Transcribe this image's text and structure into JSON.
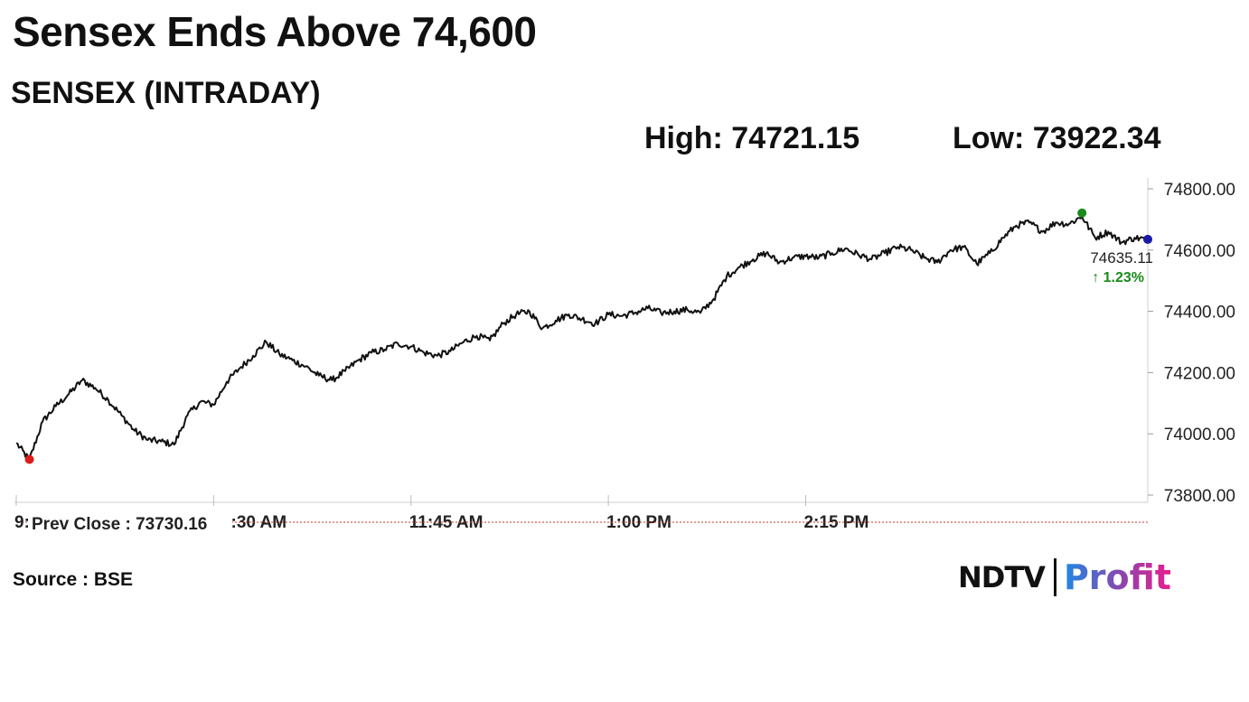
{
  "headline": "Sensex Ends Above 74,600",
  "subheadline": "SENSEX (INTRADAY)",
  "high_text": "High: 74721.15",
  "low_text": "Low: 73922.34",
  "source_text": "Source : BSE",
  "brand": {
    "ndtv": "NDTV",
    "profit": "Profit"
  },
  "chart_data": {
    "type": "line",
    "series": [
      {
        "points": [
          [
            "9:15",
            73970
          ],
          [
            "9:20",
            73915
          ],
          [
            "9:25",
            74040
          ],
          [
            "9:30",
            74090
          ],
          [
            "9:35",
            74130
          ],
          [
            "9:40",
            74175
          ],
          [
            "9:45",
            74150
          ],
          [
            "9:50",
            74110
          ],
          [
            "9:55",
            74060
          ],
          [
            "10:00",
            74010
          ],
          [
            "10:05",
            73980
          ],
          [
            "10:10",
            73975
          ],
          [
            "10:15",
            73965
          ],
          [
            "10:20",
            74060
          ],
          [
            "10:25",
            74105
          ],
          [
            "10:30",
            74095
          ],
          [
            "10:35",
            74170
          ],
          [
            "10:40",
            74215
          ],
          [
            "10:45",
            74255
          ],
          [
            "10:50",
            74300
          ],
          [
            "10:55",
            74260
          ],
          [
            "11:00",
            74240
          ],
          [
            "11:05",
            74220
          ],
          [
            "11:10",
            74190
          ],
          [
            "11:15",
            74175
          ],
          [
            "11:20",
            74205
          ],
          [
            "11:25",
            74240
          ],
          [
            "11:30",
            74265
          ],
          [
            "11:35",
            74275
          ],
          [
            "11:40",
            74295
          ],
          [
            "11:45",
            74285
          ],
          [
            "11:50",
            74265
          ],
          [
            "11:55",
            74255
          ],
          [
            "12:00",
            74270
          ],
          [
            "12:05",
            74300
          ],
          [
            "12:10",
            74320
          ],
          [
            "12:15",
            74305
          ],
          [
            "12:20",
            74360
          ],
          [
            "12:25",
            74390
          ],
          [
            "12:30",
            74400
          ],
          [
            "12:35",
            74345
          ],
          [
            "12:40",
            74370
          ],
          [
            "12:45",
            74390
          ],
          [
            "12:50",
            74375
          ],
          [
            "12:55",
            74360
          ],
          [
            "13:00",
            74390
          ],
          [
            "13:05",
            74385
          ],
          [
            "13:10",
            74395
          ],
          [
            "13:15",
            74410
          ],
          [
            "13:20",
            74395
          ],
          [
            "13:25",
            74400
          ],
          [
            "13:30",
            74405
          ],
          [
            "13:35",
            74395
          ],
          [
            "13:40",
            74440
          ],
          [
            "13:45",
            74515
          ],
          [
            "13:50",
            74545
          ],
          [
            "13:55",
            74570
          ],
          [
            "14:00",
            74590
          ],
          [
            "14:05",
            74560
          ],
          [
            "14:10",
            74575
          ],
          [
            "14:15",
            74580
          ],
          [
            "14:20",
            74575
          ],
          [
            "14:25",
            74590
          ],
          [
            "14:30",
            74605
          ],
          [
            "14:35",
            74585
          ],
          [
            "14:40",
            74570
          ],
          [
            "14:45",
            74590
          ],
          [
            "14:50",
            74610
          ],
          [
            "14:55",
            74600
          ],
          [
            "15:00",
            74575
          ],
          [
            "15:05",
            74560
          ],
          [
            "15:10",
            74600
          ],
          [
            "15:15",
            74610
          ],
          [
            "15:20",
            74555
          ],
          [
            "15:25",
            74590
          ],
          [
            "15:30",
            74640
          ],
          [
            "15:35",
            74680
          ],
          [
            "15:40",
            74690
          ],
          [
            "15:45",
            74660
          ],
          [
            "15:50",
            74690
          ],
          [
            "15:55",
            74685
          ],
          [
            "16:00",
            74710
          ],
          [
            "16:05",
            74640
          ],
          [
            "16:10",
            74660
          ],
          [
            "16:15",
            74625
          ],
          [
            "16:20",
            74640
          ],
          [
            "16:25",
            74635
          ]
        ]
      }
    ],
    "x_ticks": [
      "9:",
      "10:30 AM",
      "11:45 AM",
      "1:00 PM",
      "2:15 PM"
    ],
    "y_ticks": [
      74800,
      74600,
      74400,
      74200,
      74000,
      73800
    ],
    "ylim": [
      73800,
      74800
    ],
    "prev_close": 73730.16,
    "prev_close_label": "Prev Close : 73730.16",
    "last_value_label": "74635.11",
    "change_label": "↑ 1.23%",
    "high_value": 74721.15,
    "low_value": 73922.34,
    "colors": {
      "line": "#111111",
      "high_marker": "#1a8a1a",
      "low_marker": "#e01b1b",
      "last_marker": "#1a1aa8",
      "change": "#1a8a1a",
      "prev_close": "#c0392b"
    }
  }
}
